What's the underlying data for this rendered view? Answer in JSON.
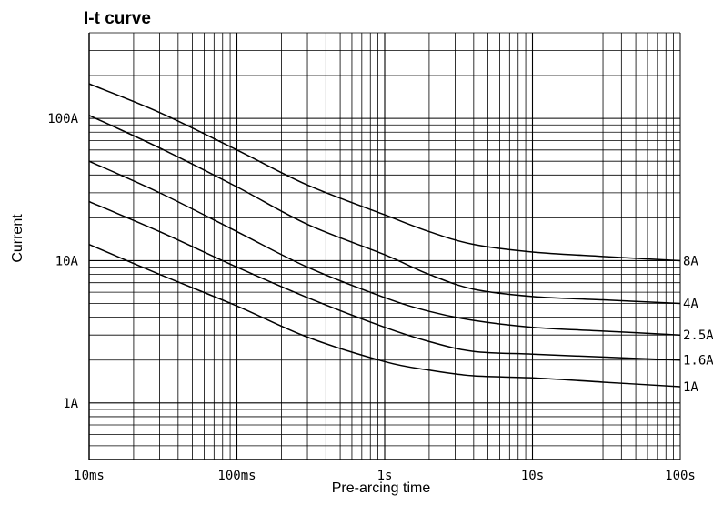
{
  "chart_data": {
    "type": "line",
    "title": "I-t curve",
    "xlabel": "Pre-arcing time",
    "ylabel": "Current",
    "x_scale": "log",
    "y_scale": "log",
    "xlim": [
      "10ms",
      "100s"
    ],
    "ylim": [
      0.4,
      400
    ],
    "x_ticks": [
      {
        "value": 0.01,
        "label": "10ms"
      },
      {
        "value": 0.1,
        "label": "100ms"
      },
      {
        "value": 1,
        "label": "1s"
      },
      {
        "value": 10,
        "label": "10s"
      },
      {
        "value": 100,
        "label": "100s"
      }
    ],
    "y_ticks": [
      {
        "value": 1,
        "label": "1A"
      },
      {
        "value": 10,
        "label": "10A"
      },
      {
        "value": 100,
        "label": "100A"
      }
    ],
    "grid": true,
    "series": [
      {
        "name": "8A",
        "points": [
          [
            0.01,
            175
          ],
          [
            0.03,
            110
          ],
          [
            0.1,
            60
          ],
          [
            0.3,
            34
          ],
          [
            1,
            21
          ],
          [
            2,
            16
          ],
          [
            4,
            13
          ],
          [
            10,
            11.5
          ],
          [
            30,
            10.7
          ],
          [
            100,
            10
          ]
        ]
      },
      {
        "name": "4A",
        "points": [
          [
            0.01,
            105
          ],
          [
            0.03,
            62
          ],
          [
            0.1,
            33
          ],
          [
            0.3,
            18
          ],
          [
            1,
            11
          ],
          [
            2,
            8
          ],
          [
            4,
            6.3
          ],
          [
            10,
            5.6
          ],
          [
            30,
            5.3
          ],
          [
            100,
            5
          ]
        ]
      },
      {
        "name": "2.5A",
        "points": [
          [
            0.01,
            50
          ],
          [
            0.03,
            30
          ],
          [
            0.1,
            16
          ],
          [
            0.3,
            9
          ],
          [
            1,
            5.5
          ],
          [
            2,
            4.4
          ],
          [
            4,
            3.8
          ],
          [
            10,
            3.4
          ],
          [
            30,
            3.2
          ],
          [
            100,
            3
          ]
        ]
      },
      {
        "name": "1.6A",
        "points": [
          [
            0.01,
            26
          ],
          [
            0.03,
            16
          ],
          [
            0.1,
            9
          ],
          [
            0.3,
            5.5
          ],
          [
            1,
            3.4
          ],
          [
            2,
            2.7
          ],
          [
            4,
            2.3
          ],
          [
            10,
            2.2
          ],
          [
            30,
            2.1
          ],
          [
            100,
            2
          ]
        ]
      },
      {
        "name": "1A",
        "points": [
          [
            0.01,
            13
          ],
          [
            0.03,
            8
          ],
          [
            0.1,
            4.8
          ],
          [
            0.3,
            2.9
          ],
          [
            1,
            1.95
          ],
          [
            2,
            1.7
          ],
          [
            4,
            1.55
          ],
          [
            10,
            1.5
          ],
          [
            30,
            1.4
          ],
          [
            100,
            1.3
          ]
        ]
      }
    ]
  }
}
